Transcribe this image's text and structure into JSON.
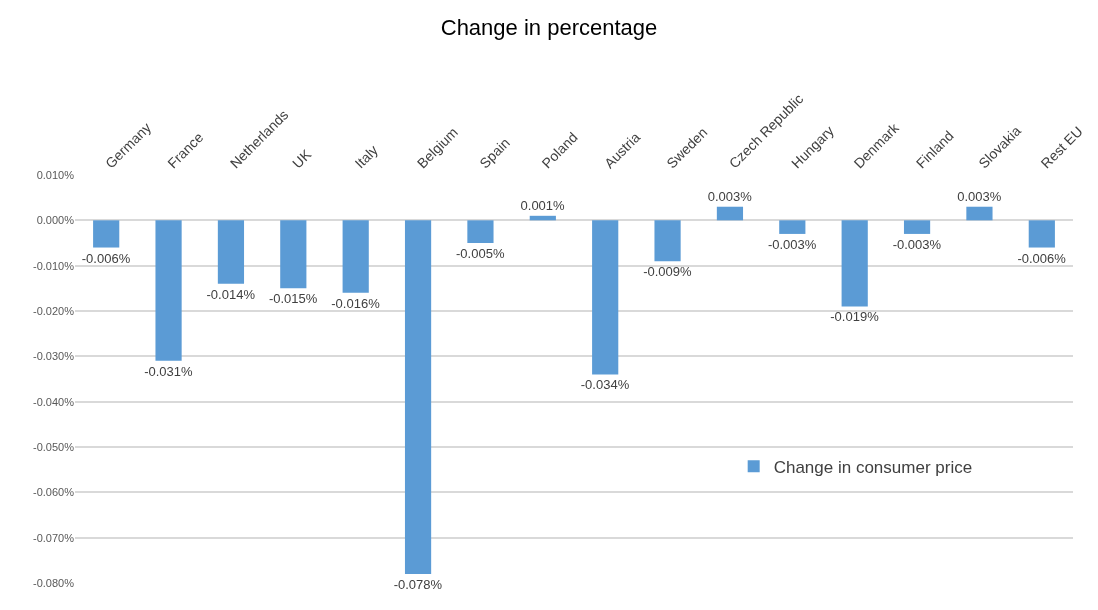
{
  "chart_data": {
    "type": "bar",
    "title": "Change in percentage",
    "categories": [
      "Germany",
      "France",
      "Netherlands",
      "UK",
      "Italy",
      "Belgium",
      "Spain",
      "Poland",
      "Austria",
      "Sweden",
      "Czech Republic",
      "Hungary",
      "Denmark",
      "Finland",
      "Slovakia",
      "Rest EU"
    ],
    "series": [
      {
        "name": "Change in consumer price",
        "color": "#5b9bd5",
        "values": [
          -0.006,
          -0.031,
          -0.014,
          -0.015,
          -0.016,
          -0.078,
          -0.005,
          0.001,
          -0.034,
          -0.009,
          0.003,
          -0.003,
          -0.019,
          -0.003,
          0.003,
          -0.006
        ],
        "value_labels": [
          "-0.006%",
          "-0.031%",
          "-0.014%",
          "-0.015%",
          "-0.016%",
          "-0.078%",
          "-0.005%",
          "0.001%",
          "-0.034%",
          "-0.009%",
          "0.003%",
          "-0.003%",
          "-0.019%",
          "-0.003%",
          "0.003%",
          "-0.006%"
        ]
      }
    ],
    "ylim": [
      -0.08,
      0.01
    ],
    "yticks": [
      {
        "value": 0.01,
        "label": "0.010%"
      },
      {
        "value": 0,
        "label": "0.000%"
      },
      {
        "value": -0.01,
        "label": "-0.010%"
      },
      {
        "value": -0.02,
        "label": "-0.020%"
      },
      {
        "value": -0.03,
        "label": "-0.030%"
      },
      {
        "value": -0.04,
        "label": "-0.040%"
      },
      {
        "value": -0.05,
        "label": "-0.050%"
      },
      {
        "value": -0.06,
        "label": "-0.060%"
      },
      {
        "value": -0.07,
        "label": "-0.070%"
      },
      {
        "value": -0.08,
        "label": "-0.080%"
      }
    ],
    "grid": "y",
    "legend": "bottom right"
  }
}
